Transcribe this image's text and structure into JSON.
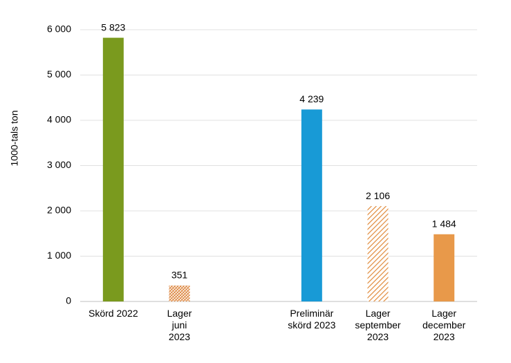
{
  "chart_data": {
    "type": "bar",
    "y_label": "1000-tals ton",
    "categories": [
      "Skörd 2022",
      "Lager\njuni\n2023",
      null,
      "Preliminär\nskörd 2023",
      "Lager\nseptember\n2023",
      "Lager\ndecember\n2023"
    ],
    "values": [
      5823,
      351,
      null,
      4239,
      2106,
      1484
    ],
    "value_labels": [
      "5 823",
      "351",
      null,
      "4 239",
      "2 106",
      "1 484"
    ],
    "colors": [
      "#7a9a1e",
      "#d9792a",
      null,
      "#189ad6",
      "#e08a3a",
      "#e8994a"
    ],
    "patterns": [
      "solid",
      "crosshatch",
      null,
      "solid",
      "diagonal",
      "solid"
    ],
    "ylim": [
      0,
      6000
    ],
    "yticks": [
      0,
      {
        "value": 1000,
        "label": "1 000"
      },
      {
        "value": 2000,
        "label": "2 000"
      },
      {
        "value": 3000,
        "label": "3 000"
      },
      {
        "value": 4000,
        "label": "4 000"
      },
      {
        "value": 5000,
        "label": "5 000"
      },
      {
        "value": 6000,
        "label": "6 000"
      }
    ],
    "grid": true
  }
}
